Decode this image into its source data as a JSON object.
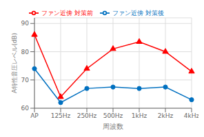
{
  "chart_data": {
    "type": "line",
    "xlabel": "周波数",
    "ylabel": "A特性音圧レベル(dB)",
    "categories": [
      "AP",
      "125Hz",
      "250Hz",
      "500Hz",
      "1kHz",
      "2kHz",
      "4kHz"
    ],
    "series": [
      {
        "name": "ファン近傍 対策前",
        "color": "#FF0000",
        "marker": "triangle",
        "values": [
          86,
          64,
          74,
          81,
          83.5,
          80,
          73
        ]
      },
      {
        "name": "ファン近傍 対策後",
        "color": "#0070C0",
        "marker": "circle",
        "values": [
          74,
          62,
          67,
          67.5,
          67,
          67.5,
          63
        ]
      }
    ],
    "ylim": [
      60,
      92
    ],
    "yticks": [
      60,
      70,
      80,
      90
    ],
    "grid": true,
    "legend": "top"
  }
}
